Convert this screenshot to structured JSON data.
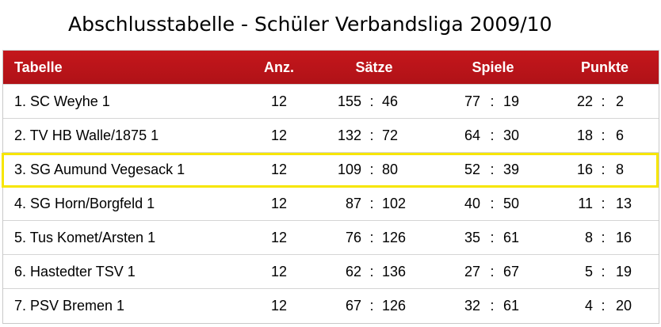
{
  "title": "Abschlusstabelle - Schüler Verbandsliga 2009/10",
  "header": {
    "team": "Tabelle",
    "anz": "Anz.",
    "saetze": "Sätze",
    "spiele": "Spiele",
    "punkte": "Punkte"
  },
  "separator": ":",
  "rows": [
    {
      "team": "1. SC Weyhe 1",
      "anz": "12",
      "s1": "155",
      "s2": "46",
      "g1": "77",
      "g2": "19",
      "p1": "22",
      "p2": "2"
    },
    {
      "team": "2. TV HB Walle/1875 1",
      "anz": "12",
      "s1": "132",
      "s2": "72",
      "g1": "64",
      "g2": "30",
      "p1": "18",
      "p2": "6"
    },
    {
      "team": "3. SG Aumund Vegesack 1",
      "anz": "12",
      "s1": "109",
      "s2": "80",
      "g1": "52",
      "g2": "39",
      "p1": "16",
      "p2": "8"
    },
    {
      "team": "4. SG Horn/Borgfeld 1",
      "anz": "12",
      "s1": "87",
      "s2": "102",
      "g1": "40",
      "g2": "50",
      "p1": "11",
      "p2": "13"
    },
    {
      "team": "5. Tus Komet/Arsten 1",
      "anz": "12",
      "s1": "76",
      "s2": "126",
      "g1": "35",
      "g2": "61",
      "p1": "8",
      "p2": "16"
    },
    {
      "team": "6. Hastedter TSV 1",
      "anz": "12",
      "s1": "62",
      "s2": "136",
      "g1": "27",
      "g2": "67",
      "p1": "5",
      "p2": "19"
    },
    {
      "team": "7. PSV Bremen 1",
      "anz": "12",
      "s1": "67",
      "s2": "126",
      "g1": "32",
      "g2": "61",
      "p1": "4",
      "p2": "20"
    }
  ],
  "colors": {
    "header_bg": "#c4161c",
    "header_text": "#ffffff",
    "highlight_border": "#f7e600"
  }
}
